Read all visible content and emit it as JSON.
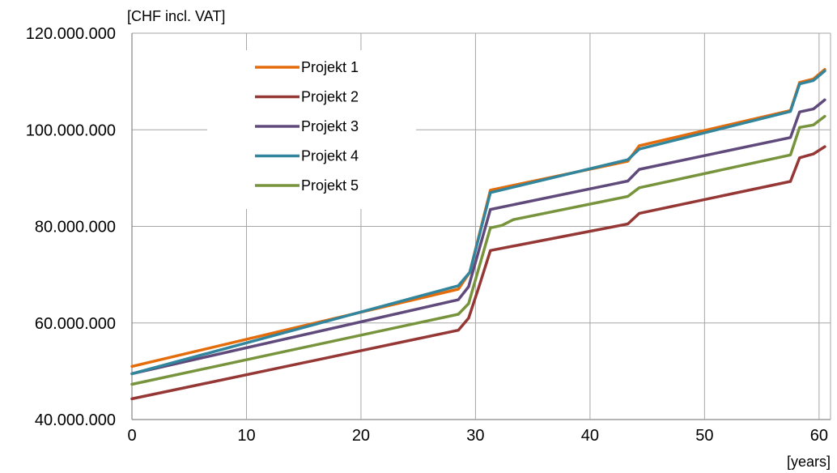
{
  "chart_data": {
    "type": "line",
    "title": "",
    "ylabel": "[CHF incl. VAT]",
    "xlabel": "[years]",
    "xlim": [
      0,
      61
    ],
    "ylim": [
      40000000,
      120000000
    ],
    "xticks": [
      0,
      10,
      20,
      30,
      40,
      50,
      60
    ],
    "yticks": [
      40000000,
      60000000,
      80000000,
      100000000,
      120000000
    ],
    "ytick_labels": [
      "40.000.000",
      "60.000.000",
      "80.000.000",
      "100.000.000",
      "120.000.000"
    ],
    "grid": true,
    "legend_position": "top-left",
    "series": [
      {
        "name": "Projekt 1",
        "color": "#e46c0a",
        "x": [
          0,
          28.5,
          29.5,
          31.3,
          43.3,
          44.3,
          57.5,
          58.3,
          59.5,
          60.5
        ],
        "y": [
          51000000,
          67000000,
          70500000,
          87500000,
          93500000,
          96700000,
          104000000,
          109800000,
          110500000,
          112500000
        ]
      },
      {
        "name": "Projekt 2",
        "color": "#953735",
        "x": [
          0,
          28.5,
          29.4,
          30.3,
          31.3,
          43.3,
          44.3,
          57.5,
          58.3,
          59.5,
          60.5
        ],
        "y": [
          44300000,
          58500000,
          61000000,
          67500000,
          75000000,
          80500000,
          82700000,
          89300000,
          94200000,
          95000000,
          96500000
        ]
      },
      {
        "name": "Projekt 3",
        "color": "#604a7b",
        "x": [
          0,
          28.5,
          29.4,
          31.3,
          43.3,
          44.3,
          57.5,
          58.3,
          59.5,
          60.5
        ],
        "y": [
          49500000,
          64800000,
          67500000,
          83500000,
          89400000,
          91800000,
          98400000,
          103700000,
          104300000,
          106200000
        ]
      },
      {
        "name": "Projekt 4",
        "color": "#31859c",
        "x": [
          0,
          28.5,
          29.5,
          31.3,
          43.3,
          44.3,
          57.5,
          58.3,
          59.5,
          60.5
        ],
        "y": [
          49500000,
          67700000,
          70500000,
          87000000,
          93800000,
          96000000,
          103800000,
          109500000,
          110200000,
          112200000
        ]
      },
      {
        "name": "Projekt 5",
        "color": "#77933c",
        "x": [
          0,
          28.5,
          29.4,
          31.3,
          32.3,
          33.3,
          43.3,
          44.3,
          57.5,
          58.3,
          59.5,
          60.5
        ],
        "y": [
          47300000,
          61800000,
          64000000,
          79700000,
          80200000,
          81400000,
          86200000,
          88000000,
          94800000,
          100500000,
          101000000,
          102800000
        ]
      }
    ]
  }
}
